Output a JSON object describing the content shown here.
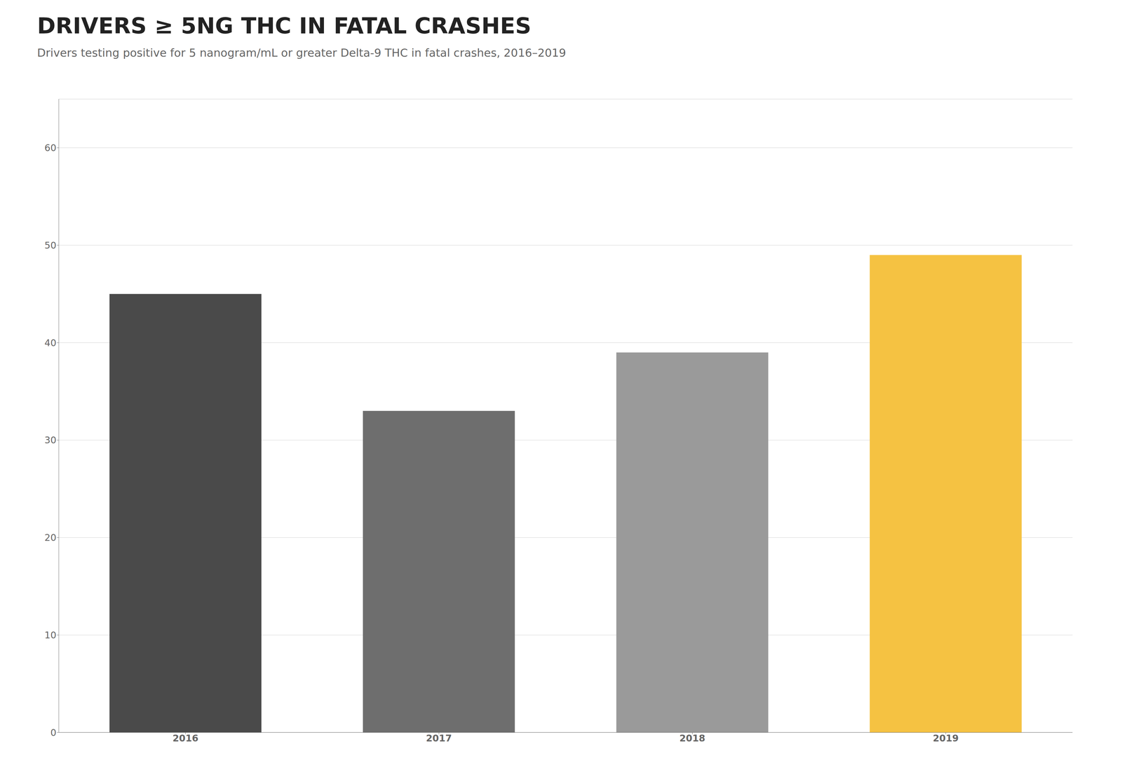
{
  "chart_data": {
    "type": "bar",
    "title": "DRIVERS ≥ 5NG THC IN FATAL CRASHES",
    "subtitle": "Drivers testing positive for 5 nanogram/mL or greater Delta-9 THC in fatal crashes, 2016–2019",
    "categories": [
      "2016",
      "2017",
      "2018",
      "2019"
    ],
    "values": [
      45,
      33,
      39,
      49
    ],
    "colors": [
      "#4a4a4a",
      "#6e6e6e",
      "#9a9a9a",
      "#f5c242"
    ],
    "ylim": [
      0,
      65
    ],
    "yticks": [
      0,
      10,
      20,
      30,
      40,
      50,
      60
    ],
    "grid": true
  }
}
